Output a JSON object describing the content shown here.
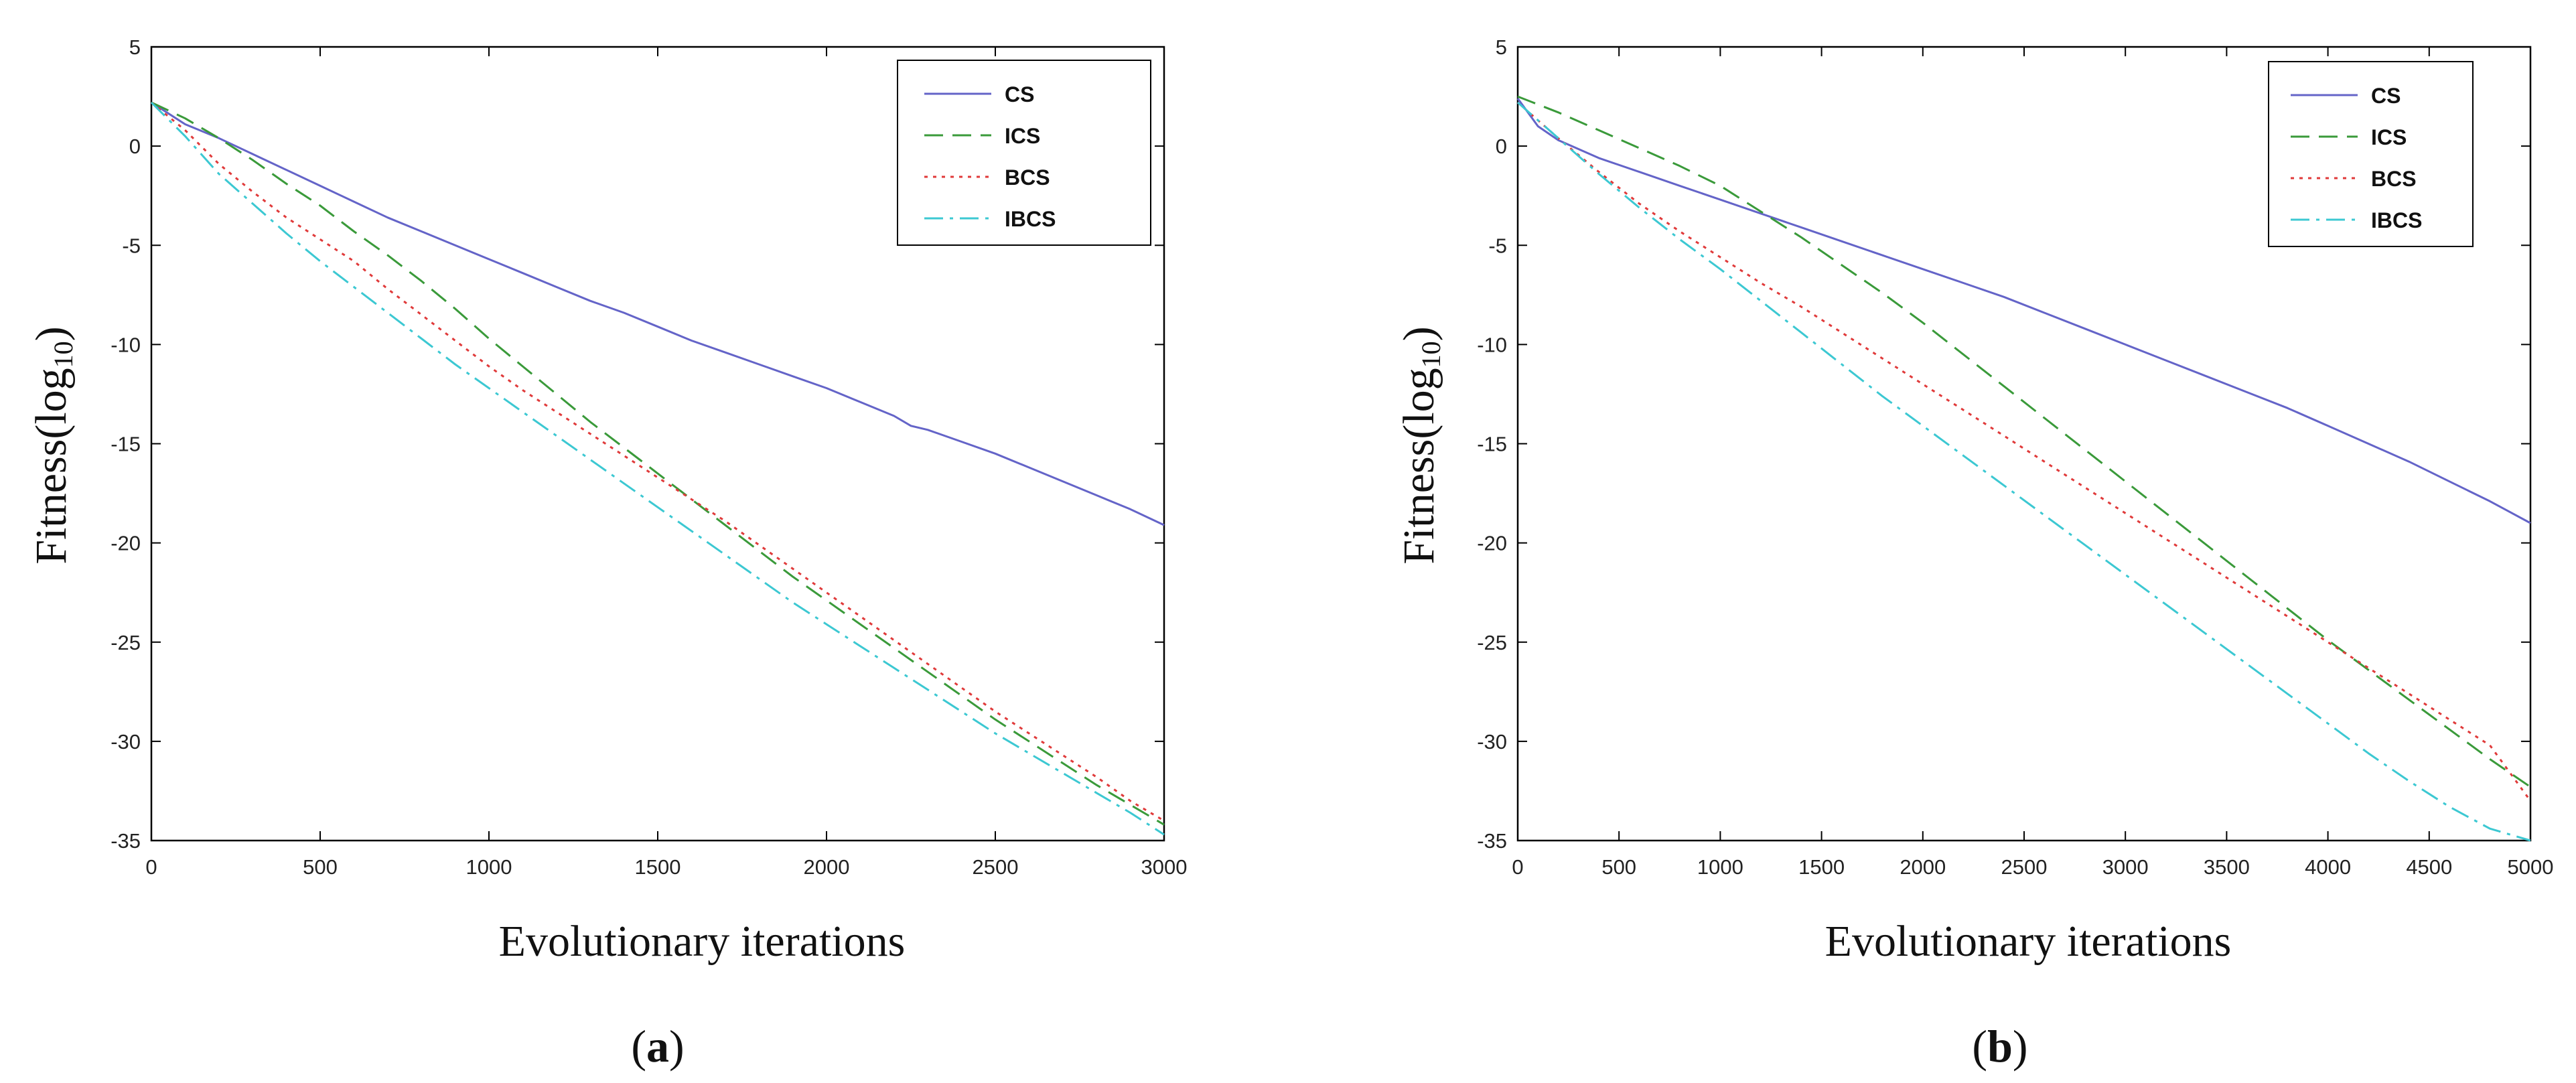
{
  "chart_data": [
    {
      "type": "line",
      "title": "",
      "caption_open": "(",
      "caption": "a",
      "caption_close": ")",
      "xlabel": "Evolutionary iterations",
      "ylabel": "Fitness(log",
      "ylabel_sub": "10",
      "ylabel_close": ")",
      "xlim": [
        0,
        3000
      ],
      "ylim": [
        -35,
        5
      ],
      "xticks": [
        0,
        500,
        1000,
        1500,
        2000,
        2500,
        3000
      ],
      "yticks": [
        5,
        0,
        -5,
        -10,
        -15,
        -20,
        -25,
        -30,
        -35
      ],
      "legend_position": "top-right",
      "grid": false,
      "series": [
        {
          "name": "CS",
          "color": "#6464c8",
          "dash": "solid",
          "x": [
            0,
            100,
            200,
            300,
            400,
            500,
            600,
            700,
            800,
            900,
            1000,
            1100,
            1200,
            1300,
            1400,
            1500,
            1600,
            1700,
            1800,
            1900,
            2000,
            2100,
            2200,
            2250,
            2300,
            2400,
            2500,
            2600,
            2700,
            2800,
            2900,
            3000
          ],
          "y": [
            2.2,
            1.1,
            0.4,
            -0.4,
            -1.2,
            -2,
            -2.8,
            -3.6,
            -4.3,
            -5,
            -5.7,
            -6.4,
            -7.1,
            -7.8,
            -8.4,
            -9.1,
            -9.8,
            -10.4,
            -11,
            -11.6,
            -12.2,
            -12.9,
            -13.6,
            -14.1,
            -14.3,
            -14.9,
            -15.5,
            -16.2,
            -16.9,
            -17.6,
            -18.3,
            -19.1
          ]
        },
        {
          "name": "ICS",
          "color": "#3a9a3a",
          "dash": "long-dash",
          "x": [
            0,
            100,
            200,
            300,
            400,
            500,
            600,
            700,
            800,
            900,
            1000,
            1100,
            1200,
            1300,
            1400,
            1500,
            1600,
            1700,
            1800,
            1900,
            2000,
            2100,
            2200,
            2300,
            2400,
            2500,
            2600,
            2700,
            2800,
            2900,
            3000
          ],
          "y": [
            2.2,
            1.4,
            0.4,
            -0.7,
            -1.9,
            -3,
            -4.3,
            -5.5,
            -6.8,
            -8.2,
            -9.7,
            -11.1,
            -12.5,
            -13.9,
            -15.2,
            -16.5,
            -17.8,
            -19.1,
            -20.4,
            -21.7,
            -22.9,
            -24.1,
            -25.3,
            -26.5,
            -27.7,
            -28.9,
            -30,
            -31.1,
            -32.2,
            -33.2,
            -34.2
          ]
        },
        {
          "name": "BCS",
          "color": "#e03a3a",
          "dash": "dotted",
          "x": [
            0,
            100,
            200,
            300,
            400,
            500,
            600,
            700,
            800,
            900,
            1000,
            1100,
            1200,
            1300,
            1400,
            1500,
            1600,
            1700,
            1800,
            1900,
            2000,
            2100,
            2200,
            2300,
            2400,
            2500,
            2600,
            2700,
            2800,
            2900,
            3000
          ],
          "y": [
            2.2,
            0.8,
            -0.9,
            -2.3,
            -3.6,
            -4.7,
            -5.8,
            -7.2,
            -8.5,
            -9.8,
            -11.1,
            -12.3,
            -13.4,
            -14.5,
            -15.6,
            -16.7,
            -17.8,
            -18.9,
            -20.1,
            -21.3,
            -22.5,
            -23.7,
            -24.9,
            -26.1,
            -27.3,
            -28.5,
            -29.6,
            -30.7,
            -31.8,
            -33,
            -34
          ]
        },
        {
          "name": "IBCS",
          "color": "#3cc8d2",
          "dash": "dash-dot",
          "x": [
            0,
            100,
            200,
            300,
            400,
            500,
            600,
            700,
            800,
            900,
            1000,
            1100,
            1200,
            1300,
            1400,
            1500,
            1600,
            1700,
            1800,
            1900,
            2000,
            2100,
            2200,
            2300,
            2400,
            2500,
            2600,
            2700,
            2800,
            2900,
            3000
          ],
          "y": [
            2.2,
            0.5,
            -1.4,
            -2.9,
            -4.4,
            -5.8,
            -7.1,
            -8.4,
            -9.7,
            -11,
            -12.2,
            -13.4,
            -14.6,
            -15.8,
            -17,
            -18.2,
            -19.4,
            -20.6,
            -21.8,
            -23,
            -24.1,
            -25.2,
            -26.3,
            -27.4,
            -28.5,
            -29.6,
            -30.6,
            -31.6,
            -32.6,
            -33.6,
            -34.7
          ]
        }
      ]
    },
    {
      "type": "line",
      "title": "",
      "caption_open": "(",
      "caption": "b",
      "caption_close": ")",
      "xlabel": "Evolutionary iterations",
      "ylabel": "Fitness(log",
      "ylabel_sub": "10",
      "ylabel_close": ")",
      "xlim": [
        0,
        5000
      ],
      "ylim": [
        -35,
        5
      ],
      "xticks": [
        0,
        500,
        1000,
        1500,
        2000,
        2500,
        3000,
        3500,
        4000,
        4500,
        5000
      ],
      "yticks": [
        5,
        0,
        -5,
        -10,
        -15,
        -20,
        -25,
        -30,
        -35
      ],
      "legend_position": "top-right",
      "grid": false,
      "series": [
        {
          "name": "CS",
          "color": "#6464c8",
          "dash": "solid",
          "x": [
            0,
            100,
            200,
            400,
            600,
            800,
            1000,
            1200,
            1400,
            1600,
            1800,
            2000,
            2200,
            2400,
            2600,
            2800,
            3000,
            3200,
            3400,
            3600,
            3800,
            4000,
            4200,
            4400,
            4600,
            4800,
            5000
          ],
          "y": [
            2.4,
            1,
            0.3,
            -0.6,
            -1.3,
            -2,
            -2.7,
            -3.4,
            -4.1,
            -4.8,
            -5.5,
            -6.2,
            -6.9,
            -7.6,
            -8.4,
            -9.2,
            -10,
            -10.8,
            -11.6,
            -12.4,
            -13.2,
            -14.1,
            -15,
            -15.9,
            -16.9,
            -17.9,
            -19
          ]
        },
        {
          "name": "ICS",
          "color": "#3a9a3a",
          "dash": "long-dash",
          "x": [
            0,
            200,
            400,
            600,
            800,
            1000,
            1200,
            1400,
            1600,
            1800,
            2000,
            2200,
            2400,
            2600,
            2800,
            3000,
            3200,
            3400,
            3600,
            3800,
            4000,
            4200,
            4400,
            4600,
            4800,
            5000
          ],
          "y": [
            2.5,
            1.7,
            0.8,
            -0.1,
            -1,
            -2,
            -3.3,
            -4.6,
            -6,
            -7.4,
            -8.9,
            -10.5,
            -12.1,
            -13.7,
            -15.3,
            -16.9,
            -18.5,
            -20.1,
            -21.7,
            -23.3,
            -24.9,
            -26.4,
            -27.9,
            -29.4,
            -30.9,
            -32.3
          ]
        },
        {
          "name": "BCS",
          "color": "#e03a3a",
          "dash": "dotted",
          "x": [
            0,
            200,
            400,
            600,
            800,
            1000,
            1200,
            1400,
            1600,
            1800,
            2000,
            2200,
            2400,
            2600,
            2800,
            3000,
            3200,
            3400,
            3600,
            3800,
            4000,
            4200,
            4400,
            4600,
            4800,
            5000
          ],
          "y": [
            2.2,
            0.4,
            -1.3,
            -2.9,
            -4.3,
            -5.6,
            -6.9,
            -8.1,
            -9.4,
            -10.7,
            -12,
            -13.3,
            -14.6,
            -15.9,
            -17.2,
            -18.5,
            -19.8,
            -21.1,
            -22.4,
            -23.7,
            -25,
            -26.3,
            -27.6,
            -28.9,
            -30.2,
            -33
          ]
        },
        {
          "name": "IBCS",
          "color": "#3cc8d2",
          "dash": "dash-dot",
          "x": [
            0,
            200,
            400,
            600,
            800,
            1000,
            1200,
            1400,
            1600,
            1800,
            2000,
            2200,
            2400,
            2600,
            2800,
            3000,
            3200,
            3400,
            3600,
            3800,
            4000,
            4200,
            4400,
            4600,
            4800,
            5000
          ],
          "y": [
            2.2,
            0.4,
            -1.4,
            -3.1,
            -4.7,
            -6.2,
            -7.8,
            -9.4,
            -11,
            -12.6,
            -14.1,
            -15.6,
            -17.1,
            -18.6,
            -20.1,
            -21.6,
            -23.1,
            -24.6,
            -26.1,
            -27.6,
            -29.1,
            -30.6,
            -32,
            -33.3,
            -34.4,
            -35
          ]
        }
      ]
    }
  ]
}
